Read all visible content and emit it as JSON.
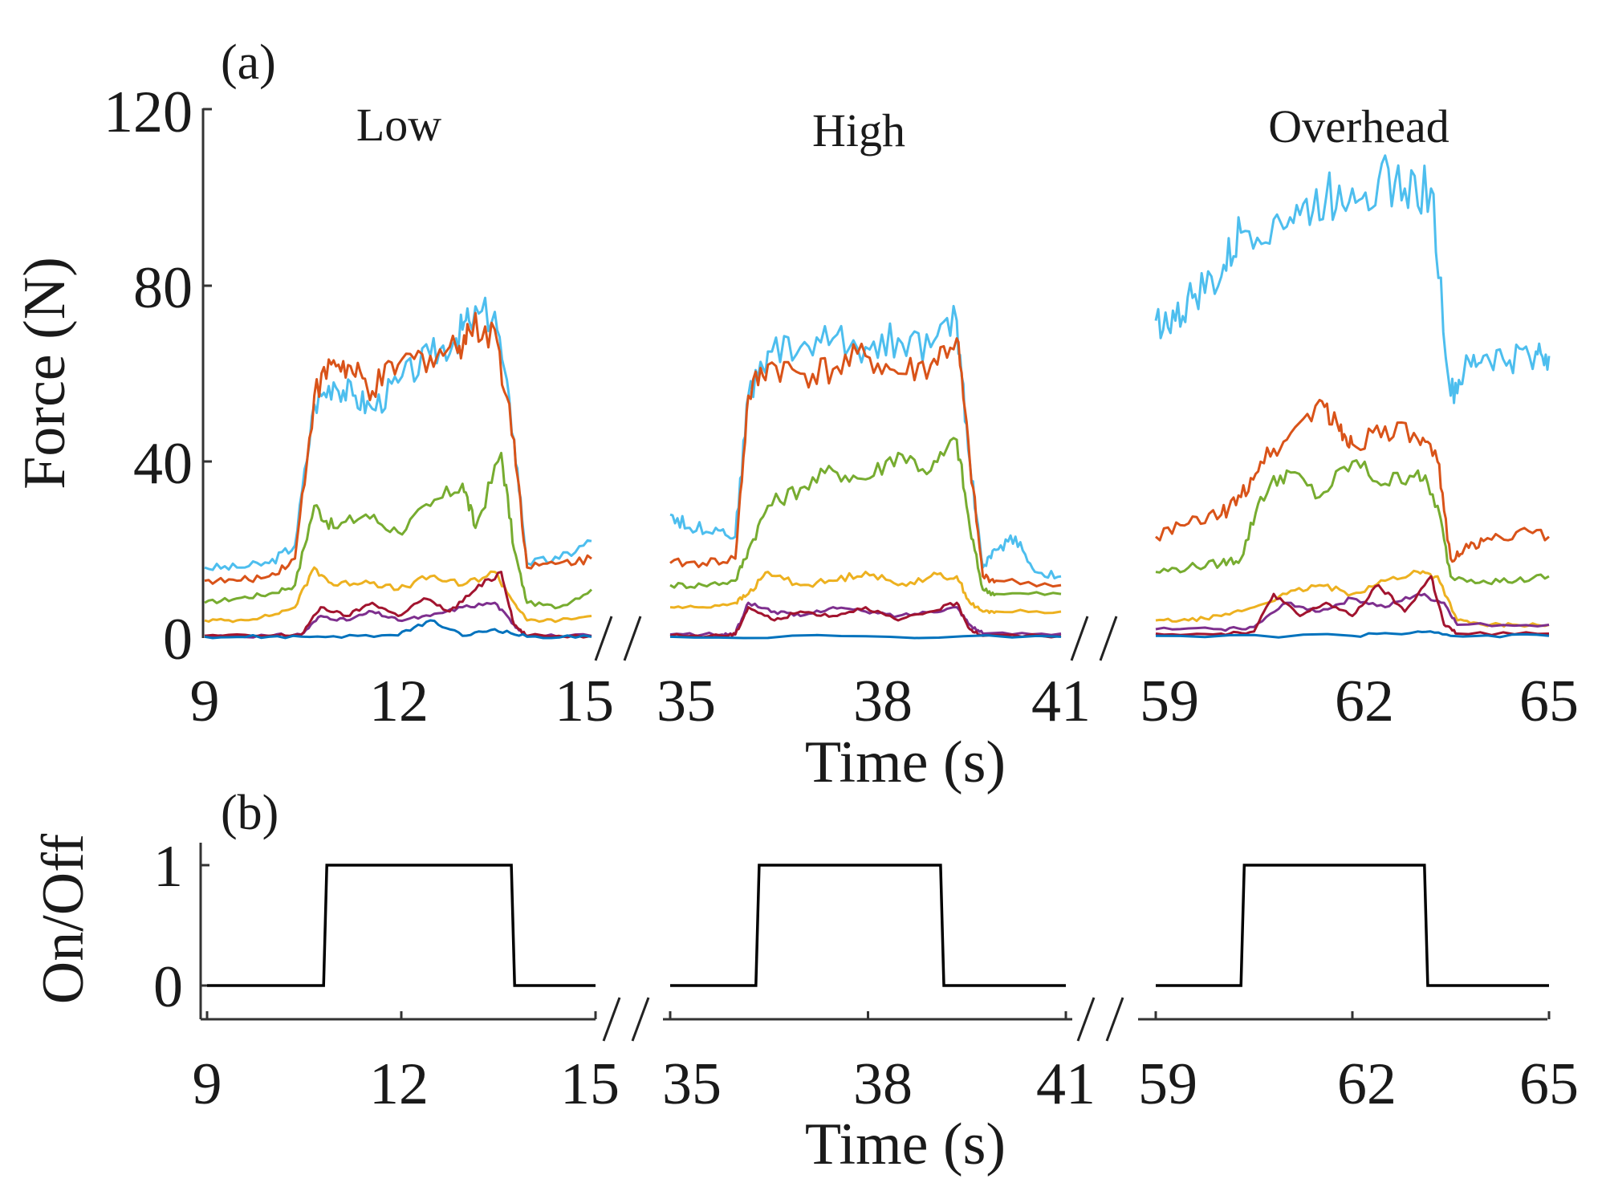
{
  "chart_data": [
    {
      "panel_label": "(a)",
      "type": "line",
      "ylabel": "Force (N)",
      "xlabel": "Time (s)",
      "ylim": [
        0,
        120
      ],
      "yticks": [
        "0",
        "40",
        "80",
        "120"
      ],
      "series_colors": {
        "cyan": "#4dbeee",
        "orange": "#d95319",
        "green": "#77ac30",
        "yellow": "#edb120",
        "purple": "#7e2f8e",
        "crimson": "#a2142f",
        "blue": "#0072bd"
      },
      "segments": [
        {
          "title": "Low",
          "xlim": [
            9,
            15
          ],
          "xticks": [
            "9",
            "12",
            "15"
          ],
          "series": [
            {
              "name": "cyan",
              "x": [
                9,
                9.5,
                10,
                10.4,
                10.7,
                11,
                11.3,
                11.6,
                12,
                12.5,
                12.9,
                13.1,
                13.5,
                13.8,
                14,
                14.5,
                15
              ],
              "y": [
                16,
                16,
                17,
                21,
                53,
                58,
                55,
                52,
                58,
                64,
                68,
                72,
                74,
                45,
                17,
                18,
                22
              ]
            },
            {
              "name": "orange",
              "x": [
                9,
                9.5,
                10,
                10.4,
                10.7,
                11,
                11.3,
                11.6,
                12,
                12.5,
                12.9,
                13.1,
                13.5,
                13.8,
                14,
                14.5,
                15
              ],
              "y": [
                13,
                13,
                14,
                18,
                55,
                63,
                60,
                56,
                62,
                64,
                66,
                70,
                70,
                45,
                16,
                17,
                18
              ]
            },
            {
              "name": "green",
              "x": [
                9,
                9.5,
                10,
                10.4,
                10.7,
                11,
                11.5,
                12,
                12.5,
                13,
                13.2,
                13.6,
                13.8,
                14,
                14.5,
                15
              ],
              "y": [
                8,
                9,
                10,
                12,
                30,
                25,
                28,
                24,
                30,
                35,
                25,
                42,
                20,
                8,
                7,
                11
              ]
            },
            {
              "name": "yellow",
              "x": [
                9,
                9.5,
                10,
                10.4,
                10.7,
                11,
                11.5,
                12,
                12.5,
                13,
                13.5,
                13.8,
                14,
                14.5,
                15
              ],
              "y": [
                4,
                4,
                5,
                7,
                16,
                12,
                13,
                11,
                14,
                12,
                15,
                8,
                4,
                4,
                5
              ]
            },
            {
              "name": "purple",
              "x": [
                9,
                10,
                10.5,
                10.8,
                11.2,
                11.6,
                12,
                12.5,
                13,
                13.5,
                13.8,
                14,
                15
              ],
              "y": [
                0.5,
                0.5,
                0.8,
                5,
                4,
                6,
                4,
                5,
                7,
                8,
                3,
                0.5,
                0.5
              ]
            },
            {
              "name": "crimson",
              "x": [
                9,
                10,
                10.5,
                10.8,
                11.2,
                11.6,
                12,
                12.4,
                12.8,
                13.2,
                13.6,
                13.8,
                14,
                15
              ],
              "y": [
                0.5,
                0.5,
                0.8,
                7,
                5,
                8,
                5,
                9,
                6,
                11,
                15,
                3,
                0.5,
                0.5
              ]
            },
            {
              "name": "blue",
              "x": [
                9,
                10,
                11,
                12,
                12.5,
                13,
                13.5,
                14,
                15
              ],
              "y": [
                0.3,
                0.3,
                0.4,
                0.6,
                4,
                0.5,
                2,
                0.3,
                0.3
              ]
            }
          ]
        },
        {
          "title": "High",
          "xlim": [
            35,
            41
          ],
          "xticks": [
            "35",
            "38",
            "41"
          ],
          "series": [
            {
              "name": "cyan",
              "x": [
                35,
                35.3,
                35.7,
                36,
                36.2,
                36.5,
                37,
                37.5,
                38,
                38.5,
                39,
                39.4,
                39.6,
                39.8,
                40,
                40.3,
                40.6,
                41
              ],
              "y": [
                28,
                25,
                25,
                23,
                55,
                65,
                66,
                68,
                66,
                68,
                66,
                72,
                40,
                16,
                20,
                23,
                15,
                14
              ]
            },
            {
              "name": "orange",
              "x": [
                35,
                35.5,
                36,
                36.2,
                36.5,
                37,
                37.5,
                38,
                38.5,
                39,
                39.4,
                39.6,
                39.8,
                40,
                41
              ],
              "y": [
                17,
                17,
                18,
                55,
                62,
                60,
                61,
                64,
                60,
                62,
                68,
                40,
                14,
                13,
                12
              ]
            },
            {
              "name": "green",
              "x": [
                35,
                35.5,
                36,
                36.2,
                36.5,
                37,
                37.5,
                38,
                38.5,
                39,
                39.4,
                39.6,
                39.8,
                40,
                41
              ],
              "y": [
                12,
                12,
                13,
                20,
                30,
                34,
                38,
                36,
                42,
                38,
                45,
                25,
                11,
                10,
                10
              ]
            },
            {
              "name": "yellow",
              "x": [
                35,
                35.5,
                36,
                36.2,
                36.5,
                37,
                37.5,
                38,
                38.5,
                39,
                39.4,
                39.6,
                39.8,
                40,
                41
              ],
              "y": [
                7,
                7,
                8,
                10,
                15,
                12,
                13,
                15,
                12,
                14,
                14,
                8,
                6,
                6,
                6
              ]
            },
            {
              "name": "purple",
              "x": [
                35,
                35.8,
                36,
                36.2,
                36.6,
                37,
                37.5,
                38,
                38.5,
                39,
                39.4,
                39.6,
                39.8,
                41
              ],
              "y": [
                0.8,
                0.8,
                1,
                8,
                6,
                5,
                7,
                6,
                5,
                6,
                7,
                3,
                1,
                1
              ]
            },
            {
              "name": "crimson",
              "x": [
                35,
                35.8,
                36,
                36.2,
                36.6,
                37,
                37.5,
                38,
                38.5,
                39,
                39.4,
                39.6,
                39.8,
                41
              ],
              "y": [
                0.5,
                0.5,
                0.8,
                7,
                4,
                6,
                5,
                7,
                4,
                6,
                8,
                2,
                0.5,
                0.5
              ]
            },
            {
              "name": "blue",
              "x": [
                35,
                38,
                41
              ],
              "y": [
                0.3,
                0.4,
                0.3
              ]
            }
          ]
        },
        {
          "title": "Overhead",
          "xlim": [
            59,
            65
          ],
          "xticks": [
            "59",
            "62",
            "65"
          ],
          "series": [
            {
              "name": "cyan",
              "x": [
                59,
                59.3,
                59.6,
                60,
                60.3,
                60.8,
                61.2,
                61.6,
                62,
                62.4,
                62.8,
                63.2,
                63.5,
                63.7,
                64,
                64.4,
                64.8,
                65
              ],
              "y": [
                72,
                72,
                78,
                82,
                92,
                95,
                96,
                100,
                102,
                104,
                102,
                102,
                55,
                60,
                64,
                63,
                65,
                64
              ]
            },
            {
              "name": "orange",
              "x": [
                59,
                59.5,
                60,
                60.3,
                60.6,
                61,
                61.5,
                61.8,
                62,
                62.5,
                63,
                63.3,
                63.5,
                63.7,
                64,
                64.5,
                65
              ],
              "y": [
                23,
                26,
                28,
                32,
                40,
                45,
                54,
                47,
                44,
                48,
                45,
                40,
                18,
                20,
                22,
                24,
                23
              ]
            },
            {
              "name": "green",
              "x": [
                59,
                59.5,
                60,
                60.3,
                60.6,
                61,
                61.5,
                62,
                62.5,
                63,
                63.3,
                63.5,
                64,
                64.5,
                65
              ],
              "y": [
                15,
                16,
                17,
                18,
                32,
                38,
                32,
                40,
                35,
                38,
                30,
                14,
                13,
                13,
                14
              ]
            },
            {
              "name": "yellow",
              "x": [
                59,
                59.5,
                60,
                60.5,
                61,
                61.5,
                62,
                62.5,
                63,
                63.3,
                63.6,
                64,
                64.5,
                65
              ],
              "y": [
                4,
                4,
                5,
                7,
                10,
                12,
                10,
                13,
                15,
                14,
                4,
                3,
                3,
                3
              ]
            },
            {
              "name": "purple",
              "x": [
                59,
                60,
                60.5,
                61,
                61.5,
                62,
                62.5,
                63,
                63.4,
                63.6,
                65
              ],
              "y": [
                2,
                2,
                2.5,
                8,
                6,
                9,
                7,
                10,
                8,
                3,
                3
              ]
            },
            {
              "name": "crimson",
              "x": [
                59,
                60,
                60.5,
                60.8,
                61.2,
                61.6,
                62,
                62.4,
                62.8,
                63.2,
                63.4,
                63.6,
                65
              ],
              "y": [
                1,
                1,
                1.5,
                10,
                5,
                8,
                5,
                12,
                6,
                14,
                3,
                1,
                1
              ]
            },
            {
              "name": "blue",
              "x": [
                59,
                62,
                63,
                63.5,
                65
              ],
              "y": [
                0.5,
                0.5,
                1.5,
                0.5,
                0.5
              ]
            }
          ]
        }
      ]
    },
    {
      "panel_label": "(b)",
      "type": "line",
      "ylabel": "On/Off",
      "xlabel": "Time (s)",
      "ylim": [
        -0.3,
        1.3
      ],
      "yticks": [
        "0",
        "1"
      ],
      "line_color": "#000000",
      "segments": [
        {
          "xlim": [
            9,
            15
          ],
          "xticks": [
            "9",
            "12",
            "15"
          ],
          "x": [
            9,
            10.8,
            10.85,
            13.7,
            13.75,
            15
          ],
          "y": [
            0,
            0,
            1,
            1,
            0,
            0
          ]
        },
        {
          "xlim": [
            35,
            41
          ],
          "xticks": [
            "35",
            "38",
            "41"
          ],
          "x": [
            35,
            36.3,
            36.35,
            39.1,
            39.15,
            41
          ],
          "y": [
            0,
            0,
            1,
            1,
            0,
            0
          ]
        },
        {
          "xlim": [
            59,
            65
          ],
          "xticks": [
            "59",
            "62",
            "65"
          ],
          "x": [
            59,
            60.3,
            60.35,
            63.1,
            63.15,
            65
          ],
          "y": [
            0,
            0,
            1,
            1,
            0,
            0
          ]
        }
      ]
    }
  ]
}
